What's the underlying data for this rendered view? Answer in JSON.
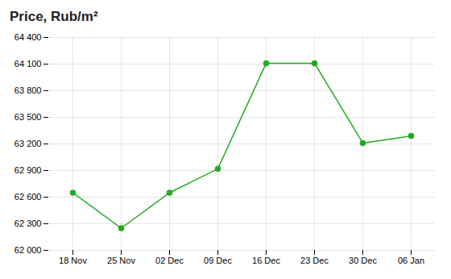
{
  "chart_data": {
    "type": "line",
    "title": "Price, Rub/m²",
    "categories": [
      "18 Nov",
      "25 Nov",
      "02 Dec",
      "09 Dec",
      "16 Dec",
      "23 Dec",
      "30 Dec",
      "06 Jan"
    ],
    "values": [
      62650,
      62250,
      62650,
      62920,
      64110,
      64110,
      63210,
      63290
    ],
    "color": "#22aa22",
    "marker": "circle",
    "ylim": [
      62000,
      64400
    ],
    "yticks": [
      {
        "value": 62000,
        "label": "62 000"
      },
      {
        "value": 62300,
        "label": "62 300"
      },
      {
        "value": 62600,
        "label": "62 600"
      },
      {
        "value": 62900,
        "label": "62 900"
      },
      {
        "value": 63200,
        "label": "63 200"
      },
      {
        "value": 63500,
        "label": "63 500"
      },
      {
        "value": 63800,
        "label": "63 800"
      },
      {
        "value": 64100,
        "label": "64 100"
      },
      {
        "value": 64400,
        "label": "64 400"
      }
    ],
    "grid": true
  }
}
